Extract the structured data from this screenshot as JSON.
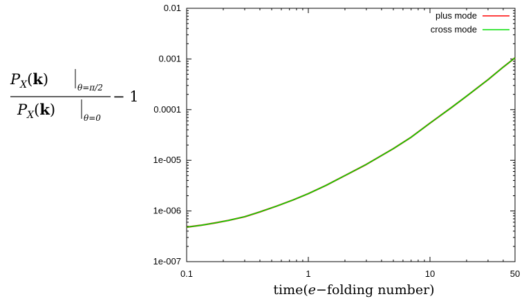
{
  "chart_data": {
    "type": "line",
    "xlabel": "time(e−folding number)",
    "ylabel": "P_X(k)|_{θ=π/2} / P_X(k)|_{θ=0} − 1",
    "x_scale": "log",
    "y_scale": "log",
    "xlim": [
      0.1,
      50
    ],
    "ylim": [
      1e-07,
      0.01
    ],
    "x_ticks": [
      {
        "value": 0.1,
        "label": "0.1"
      },
      {
        "value": 1,
        "label": "1"
      },
      {
        "value": 10,
        "label": "10"
      },
      {
        "value": 50,
        "label": "50"
      }
    ],
    "y_ticks": [
      {
        "value": 0.01,
        "label": "0.01"
      },
      {
        "value": 0.001,
        "label": "0.001"
      },
      {
        "value": 0.0001,
        "label": "0.0001"
      },
      {
        "value": 1e-05,
        "label": "1e-005"
      },
      {
        "value": 1e-06,
        "label": "1e-006"
      },
      {
        "value": 1e-07,
        "label": "1e-007"
      }
    ],
    "legend_position": "top-right",
    "grid": false,
    "series": [
      {
        "name": "plus mode",
        "color": "#ff0000",
        "x": [
          0.1,
          0.13,
          0.17,
          0.22,
          0.3,
          0.4,
          0.55,
          0.75,
          1,
          1.4,
          2,
          3,
          5,
          7,
          10,
          15,
          20,
          30,
          40,
          50
        ],
        "y": [
          4.8e-07,
          5.2e-07,
          5.8e-07,
          6.5e-07,
          7.7e-07,
          9.6e-07,
          1.25e-06,
          1.65e-06,
          2.2e-06,
          3.2e-06,
          5e-06,
          8.3e-06,
          1.7e-05,
          2.85e-05,
          5.4e-05,
          0.00011,
          0.000185,
          0.00039,
          0.00069,
          0.00105
        ]
      },
      {
        "name": "cross mode",
        "color": "#00dd00",
        "x": [
          0.1,
          0.13,
          0.17,
          0.22,
          0.3,
          0.4,
          0.55,
          0.75,
          1,
          1.4,
          2,
          3,
          5,
          7,
          10,
          15,
          20,
          30,
          40,
          50
        ],
        "y": [
          4.8e-07,
          5.2e-07,
          5.8e-07,
          6.5e-07,
          7.7e-07,
          9.6e-07,
          1.25e-06,
          1.65e-06,
          2.2e-06,
          3.2e-06,
          5e-06,
          8.3e-06,
          1.7e-05,
          2.85e-05,
          5.4e-05,
          0.00011,
          0.000185,
          0.00039,
          0.00069,
          0.00105
        ]
      }
    ]
  }
}
